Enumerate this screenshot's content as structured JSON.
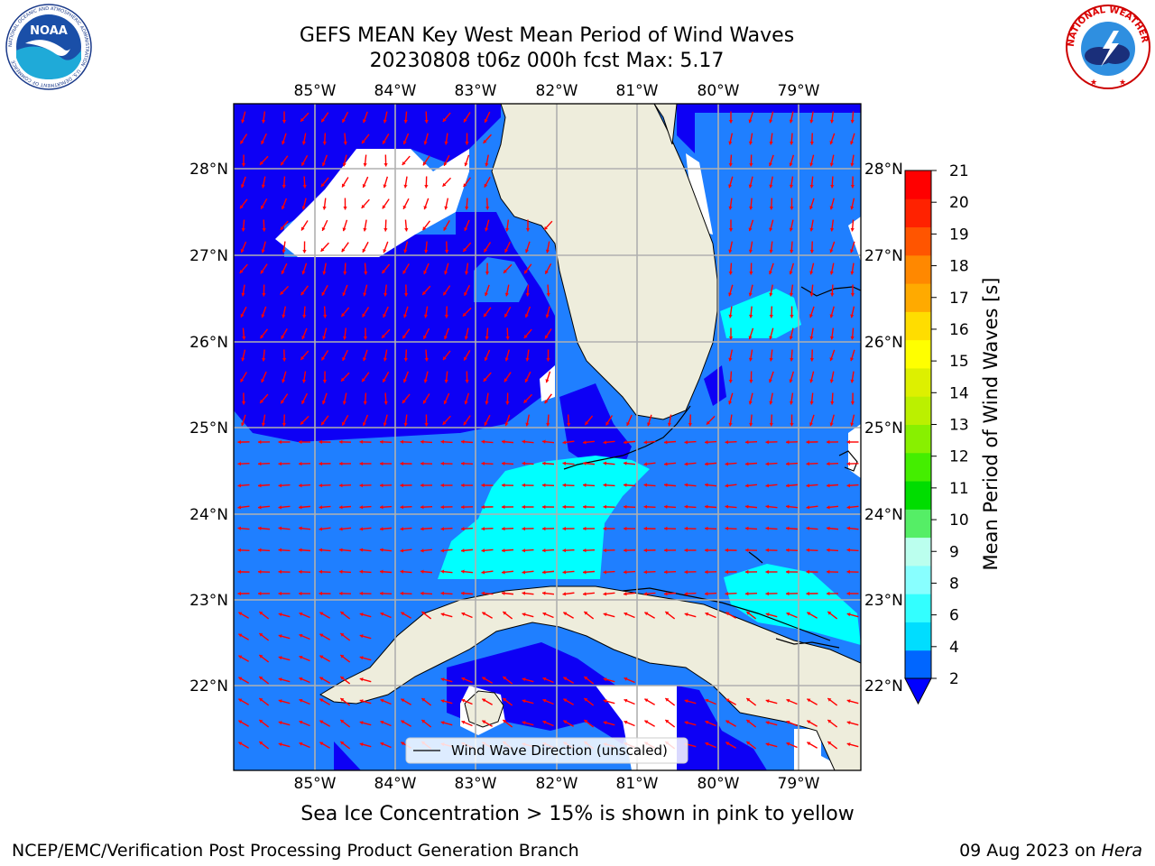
{
  "header": {
    "title_line1": "GEFS MEAN Key West Mean Period of Wind Waves",
    "title_line2": "20230808 t06z 000h fcst   Max: 5.17"
  },
  "logos": {
    "noaa_text": "NOAA",
    "noaa_ring": "NATIONAL OCEANIC AND ATMOSPHERIC ADMINISTRATION · U.S. DEPARTMENT OF COMMERCE",
    "nws_ring": "NATIONAL WEATHER SERVICE"
  },
  "map": {
    "lon_labels": [
      "85°W",
      "84°W",
      "83°W",
      "82°W",
      "81°W",
      "80°W",
      "79°W"
    ],
    "lat_labels": [
      "28°N",
      "27°N",
      "26°N",
      "25°N",
      "24°N",
      "23°N",
      "22°N"
    ],
    "legend_label": "Wind Wave Direction (unscaled)",
    "colors": {
      "land": "#eeeddc",
      "band_2_4": "#1f7fff",
      "band_under_2": "#0d00f5",
      "band_4_6": "#00ffff",
      "arrow": "#ff0000",
      "grid": "#b0b0b0"
    }
  },
  "colorbar": {
    "title": "Mean Period of Wind Waves [s]",
    "ticks": [
      "2",
      "4",
      "6",
      "8",
      "9",
      "10",
      "11",
      "12",
      "13",
      "14",
      "15",
      "16",
      "17",
      "18",
      "19",
      "20",
      "21"
    ],
    "colors": [
      "#0066ff",
      "#00ddff",
      "#33ffff",
      "#88ffff",
      "#bbffee",
      "#55ee66",
      "#00dd00",
      "#44ee00",
      "#88f000",
      "#bbf000",
      "#ddf000",
      "#ffff00",
      "#ffdd00",
      "#ffaa00",
      "#ff8800",
      "#ff5500",
      "#ff2200",
      "#ff0000"
    ],
    "under_color": "#0000ff"
  },
  "footer": {
    "sea_ice_note": "Sea Ice Concentration > 15% is shown in pink to yellow",
    "branch": "NCEP/EMC/Verification Post Processing Product Generation Branch",
    "date": "09 Aug 2023 on ",
    "host": "Hera"
  }
}
